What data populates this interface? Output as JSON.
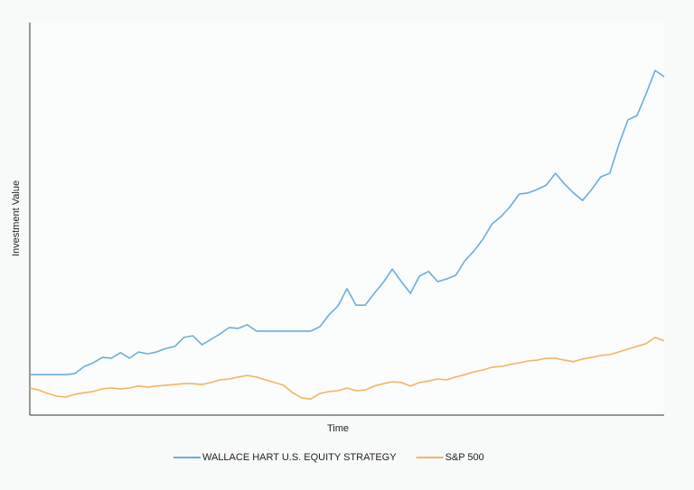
{
  "chart_data": {
    "type": "line",
    "x_label": "Time",
    "y_label": "Investment Value",
    "ylim": [
      0,
      100
    ],
    "legend": "bottom",
    "series": [
      {
        "name": "WALLACE HART U.S. EQUITY STRATEGY",
        "color": "#6aaed8",
        "values": [
          10.3,
          10.3,
          10.3,
          10.3,
          10.3,
          10.6,
          12.4,
          13.3,
          14.7,
          14.5,
          15.9,
          14.5,
          16.1,
          15.6,
          16.1,
          17.0,
          17.5,
          19.8,
          20.2,
          17.9,
          19.3,
          20.7,
          22.3,
          22.1,
          23.0,
          21.4,
          21.4,
          21.4,
          21.4,
          21.4,
          21.4,
          21.4,
          22.5,
          25.5,
          27.8,
          32.2,
          28.0,
          28.0,
          31.0,
          33.8,
          37.2,
          34.0,
          31.0,
          35.4,
          36.6,
          34.0,
          34.7,
          35.6,
          39.3,
          41.8,
          44.8,
          48.7,
          50.6,
          53.1,
          56.3,
          56.6,
          57.5,
          58.6,
          61.6,
          58.9,
          56.6,
          54.7,
          57.5,
          60.7,
          61.6,
          69.0,
          75.2,
          76.3,
          81.8,
          87.8,
          86.2
        ]
      },
      {
        "name": "S&P 500",
        "color": "#f3b461",
        "values": [
          6.9,
          6.4,
          5.5,
          4.8,
          4.6,
          5.3,
          5.7,
          6.0,
          6.7,
          6.9,
          6.7,
          6.9,
          7.4,
          7.1,
          7.4,
          7.6,
          7.8,
          8.0,
          8.0,
          7.8,
          8.3,
          9.0,
          9.2,
          9.7,
          10.1,
          9.7,
          9.0,
          8.3,
          7.6,
          5.7,
          4.4,
          4.1,
          5.5,
          6.0,
          6.2,
          6.9,
          6.2,
          6.4,
          7.4,
          8.0,
          8.5,
          8.3,
          7.4,
          8.3,
          8.7,
          9.2,
          9.0,
          9.7,
          10.3,
          11.0,
          11.5,
          12.2,
          12.4,
          12.9,
          13.3,
          13.8,
          14.0,
          14.5,
          14.5,
          14.0,
          13.6,
          14.3,
          14.7,
          15.2,
          15.4,
          16.1,
          16.8,
          17.5,
          18.2,
          19.8,
          18.9
        ]
      }
    ]
  }
}
